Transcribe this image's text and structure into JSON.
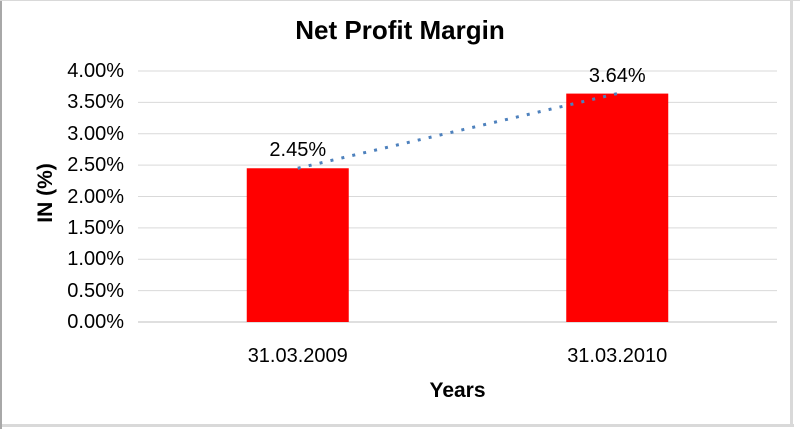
{
  "chart_data": {
    "type": "bar",
    "title": "Net Profit Margin",
    "xlabel": "Years",
    "ylabel": "IN (%)",
    "categories": [
      "31.03.2009",
      "31.03.2010"
    ],
    "values": [
      2.45,
      3.64
    ],
    "data_labels": [
      "2.45%",
      "3.64%"
    ],
    "ylim": [
      0,
      4
    ],
    "ytick_step": 0.5,
    "ytick_labels": [
      "0.00%",
      "0.50%",
      "1.00%",
      "1.50%",
      "2.00%",
      "2.50%",
      "3.00%",
      "3.50%",
      "4.00%"
    ],
    "grid": "horizontal-on",
    "legend_position": "none",
    "bar_color": "#ff0000",
    "trendline": {
      "style": "dotted",
      "color": "#4e81bd",
      "from_value": 2.45,
      "to_value": 3.64
    },
    "gridline_color": "#d9d9d9",
    "axis_line_color": "#bfbfbf"
  }
}
